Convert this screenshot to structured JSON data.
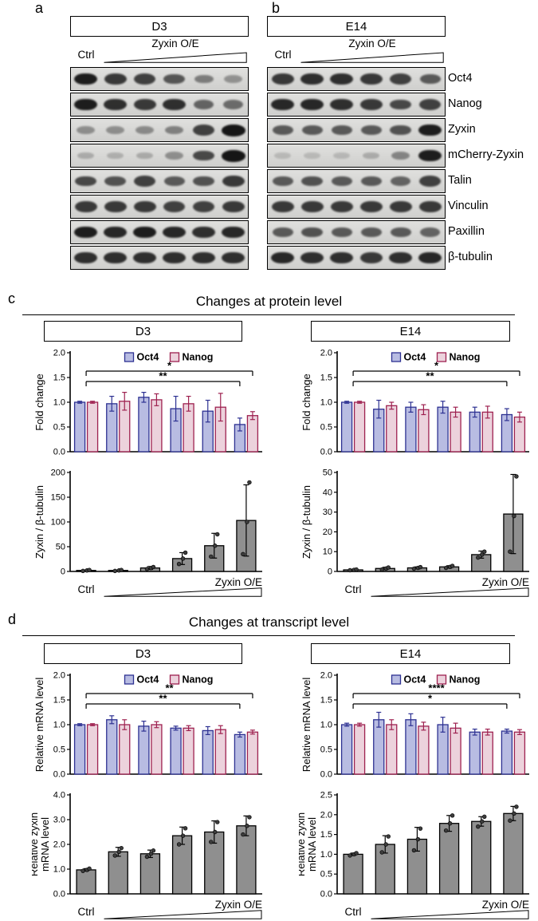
{
  "figure": {
    "panel_a_letter": "a",
    "panel_b_letter": "b",
    "panel_c_letter": "c",
    "panel_d_letter": "d"
  },
  "colors": {
    "oct4_fill": "#b8bce2",
    "oct4_stroke": "#2d3192",
    "oct4_text": "#1f25c8",
    "nanog_fill": "#ecd2dc",
    "nanog_stroke": "#9e2150",
    "nanog_text": "#b02456",
    "gray_fill": "#8f8f8f",
    "point_fill": "#3c3c3c",
    "axis": "#000000",
    "band": "#161616"
  },
  "legend": {
    "oct4": "Oct4",
    "nanog": "Nanog"
  },
  "blots": {
    "d3_title": "D3",
    "e14_title": "E14",
    "ctrl_label": "Ctrl",
    "oe_label": "Zyxin O/E",
    "rows": [
      {
        "name": "Oct4",
        "d3": [
          0.95,
          0.8,
          0.75,
          0.62,
          0.4,
          0.27
        ],
        "e14": [
          0.8,
          0.85,
          0.85,
          0.8,
          0.75,
          0.6
        ]
      },
      {
        "name": "Nanog",
        "d3": [
          0.95,
          0.85,
          0.8,
          0.85,
          0.55,
          0.5
        ],
        "e14": [
          0.9,
          0.9,
          0.85,
          0.8,
          0.7,
          0.75
        ]
      },
      {
        "name": "Zyxin",
        "d3": [
          0.3,
          0.3,
          0.32,
          0.38,
          0.75,
          1.0
        ],
        "e14": [
          0.6,
          0.6,
          0.6,
          0.6,
          0.65,
          0.95
        ]
      },
      {
        "name": "mCherry-Zyxin",
        "d3": [
          0.12,
          0.1,
          0.14,
          0.3,
          0.7,
          1.0
        ],
        "e14": [
          0.05,
          0.05,
          0.06,
          0.12,
          0.35,
          0.95
        ]
      },
      {
        "name": "Talin",
        "d3": [
          0.7,
          0.65,
          0.75,
          0.6,
          0.65,
          0.8
        ],
        "e14": [
          0.6,
          0.65,
          0.6,
          0.6,
          0.55,
          0.75
        ]
      },
      {
        "name": "Vinculin",
        "d3": [
          0.8,
          0.8,
          0.8,
          0.75,
          0.75,
          0.8
        ],
        "e14": [
          0.8,
          0.8,
          0.8,
          0.8,
          0.8,
          0.8
        ]
      },
      {
        "name": "Paxillin",
        "d3": [
          0.95,
          0.9,
          0.95,
          0.9,
          0.85,
          0.9
        ],
        "e14": [
          0.6,
          0.65,
          0.6,
          0.6,
          0.6,
          0.55
        ]
      },
      {
        "name": "β-tubulin",
        "d3": [
          0.85,
          0.85,
          0.85,
          0.85,
          0.85,
          0.85
        ],
        "e14": [
          0.9,
          0.85,
          0.85,
          0.8,
          0.85,
          0.9
        ]
      }
    ]
  },
  "protein": {
    "section_title": "Changes at protein level",
    "d3_title": "D3",
    "e14_title": "E14",
    "ctrl_label": "Ctrl",
    "oe_label": "Zyxin O/E"
  },
  "transcript": {
    "section_title": "Changes at transcript level",
    "d3_title": "D3",
    "e14_title": "E14",
    "ctrl_label": "Ctrl",
    "oe_label": "Zyxin O/E"
  },
  "chart_data": [
    {
      "id": "protein_d3_fold",
      "type": "grouped_bar",
      "panel": "c-D3",
      "ylabel": "Fold change",
      "ylim": [
        0,
        2.0
      ],
      "yticks": [
        "0.0",
        "0.5",
        "1.0",
        "1.5",
        "2.0"
      ],
      "x_axis": {
        "ctrl": "Ctrl",
        "oe": "Zyxin O/E"
      },
      "series": [
        {
          "name": "Oct4",
          "values": [
            1.0,
            0.97,
            1.1,
            0.87,
            0.82,
            0.55
          ],
          "errors": [
            0.02,
            0.15,
            0.1,
            0.25,
            0.22,
            0.13
          ]
        },
        {
          "name": "Nanog",
          "values": [
            1.0,
            1.02,
            1.05,
            0.97,
            0.9,
            0.73
          ],
          "errors": [
            0.02,
            0.18,
            0.12,
            0.15,
            0.28,
            0.08
          ]
        }
      ],
      "significance": [
        {
          "label": "*",
          "from": 0,
          "to": 5.2
        },
        {
          "label": "**",
          "from": 0,
          "to": 4.8
        }
      ]
    },
    {
      "id": "protein_e14_fold",
      "type": "grouped_bar",
      "panel": "c-E14",
      "ylabel": "Fold change",
      "ylim": [
        0,
        2.0
      ],
      "yticks": [
        "0.0",
        "0.5",
        "1.0",
        "1.5",
        "2.0"
      ],
      "x_axis": {
        "ctrl": "Ctrl",
        "oe": "Zyxin O/E"
      },
      "series": [
        {
          "name": "Oct4",
          "values": [
            1.0,
            0.86,
            0.9,
            0.9,
            0.8,
            0.75
          ],
          "errors": [
            0.02,
            0.18,
            0.1,
            0.12,
            0.1,
            0.12
          ]
        },
        {
          "name": "Nanog",
          "values": [
            1.0,
            0.93,
            0.85,
            0.8,
            0.8,
            0.7
          ],
          "errors": [
            0.02,
            0.07,
            0.1,
            0.1,
            0.12,
            0.1
          ]
        }
      ],
      "significance": [
        {
          "label": "*",
          "from": 0,
          "to": 5.2
        },
        {
          "label": "**",
          "from": 0,
          "to": 4.8
        }
      ]
    },
    {
      "id": "protein_d3_zyxin",
      "type": "bar",
      "panel": "c-D3",
      "ylabel": "Zyxin / β-tubulin",
      "ylim": [
        0,
        200
      ],
      "yticks": [
        "0",
        "50",
        "100",
        "150",
        "200"
      ],
      "x_axis": {
        "ctrl": "Ctrl",
        "oe": "Zyxin O/E"
      },
      "values": [
        2,
        2,
        7,
        26,
        52,
        103
      ],
      "errors": [
        1,
        1,
        3,
        12,
        25,
        72
      ],
      "points": [
        [
          1,
          2,
          3
        ],
        [
          1,
          2,
          3
        ],
        [
          5,
          7,
          9
        ],
        [
          15,
          26,
          38
        ],
        [
          30,
          52,
          75
        ],
        [
          35,
          100,
          180
        ]
      ]
    },
    {
      "id": "protein_e14_zyxin",
      "type": "bar",
      "panel": "c-E14",
      "ylabel": "Zyxin / β-tubulin",
      "ylim": [
        0,
        50
      ],
      "yticks": [
        "0",
        "10",
        "20",
        "30",
        "40",
        "50"
      ],
      "x_axis": {
        "ctrl": "Ctrl",
        "oe": "Zyxin O/E"
      },
      "values": [
        0.8,
        1.5,
        1.8,
        2.3,
        8.5,
        29
      ],
      "errors": [
        0.3,
        0.6,
        0.5,
        0.6,
        1.8,
        20
      ],
      "points": [
        [
          0.6,
          0.8,
          1.0
        ],
        [
          1.0,
          1.5,
          2.0
        ],
        [
          1.4,
          1.8,
          2.2
        ],
        [
          1.8,
          2.3,
          2.8
        ],
        [
          7,
          8.5,
          10
        ],
        [
          10,
          28,
          48
        ]
      ]
    },
    {
      "id": "transcript_d3_mrna",
      "type": "grouped_bar",
      "panel": "d-D3",
      "ylabel": "Relative mRNA level",
      "ylim": [
        0,
        2.0
      ],
      "yticks": [
        "0.0",
        "0.5",
        "1.0",
        "1.5",
        "2.0"
      ],
      "x_axis": {
        "ctrl": "Ctrl",
        "oe": "Zyxin O/E"
      },
      "series": [
        {
          "name": "Oct4",
          "values": [
            1.0,
            1.1,
            0.97,
            0.93,
            0.88,
            0.8
          ],
          "errors": [
            0.02,
            0.08,
            0.1,
            0.04,
            0.08,
            0.05
          ]
        },
        {
          "name": "Nanog",
          "values": [
            1.0,
            1.0,
            1.0,
            0.93,
            0.9,
            0.85
          ],
          "errors": [
            0.02,
            0.1,
            0.06,
            0.05,
            0.08,
            0.04
          ]
        }
      ],
      "significance": [
        {
          "label": "**",
          "from": 0,
          "to": 5.2
        },
        {
          "label": "**",
          "from": 0,
          "to": 4.8
        }
      ]
    },
    {
      "id": "transcript_e14_mrna",
      "type": "grouped_bar",
      "panel": "d-E14",
      "ylabel": "Relative mRNA level",
      "ylim": [
        0,
        2.0
      ],
      "yticks": [
        "0.0",
        "0.5",
        "1.0",
        "1.5",
        "2.0"
      ],
      "x_axis": {
        "ctrl": "Ctrl",
        "oe": "Zyxin O/E"
      },
      "series": [
        {
          "name": "Oct4",
          "values": [
            1.0,
            1.1,
            1.1,
            1.0,
            0.85,
            0.87
          ],
          "errors": [
            0.03,
            0.15,
            0.12,
            0.15,
            0.06,
            0.04
          ]
        },
        {
          "name": "Nanog",
          "values": [
            1.0,
            1.0,
            0.97,
            0.93,
            0.85,
            0.85
          ],
          "errors": [
            0.03,
            0.1,
            0.08,
            0.1,
            0.06,
            0.05
          ]
        }
      ],
      "significance": [
        {
          "label": "****",
          "from": 0,
          "to": 5.2
        },
        {
          "label": "*",
          "from": 0,
          "to": 4.8
        }
      ]
    },
    {
      "id": "transcript_d3_zyxin",
      "type": "bar",
      "panel": "d-D3",
      "ylabel": "Relative zyxin\nmRNA level",
      "ylim": [
        0,
        4.0
      ],
      "yticks": [
        "0.0",
        "1.0",
        "2.0",
        "3.0",
        "4.0"
      ],
      "x_axis": {
        "ctrl": "Ctrl",
        "oe": "Zyxin O/E"
      },
      "values": [
        0.97,
        1.7,
        1.62,
        2.35,
        2.5,
        2.75
      ],
      "errors": [
        0.05,
        0.18,
        0.15,
        0.35,
        0.45,
        0.4
      ],
      "points": [
        [
          0.93,
          0.97,
          1.02
        ],
        [
          1.55,
          1.7,
          1.85
        ],
        [
          1.5,
          1.62,
          1.75
        ],
        [
          2.0,
          2.35,
          2.65
        ],
        [
          2.1,
          2.5,
          2.9
        ],
        [
          2.4,
          2.75,
          3.1
        ]
      ]
    },
    {
      "id": "transcript_e14_zyxin",
      "type": "bar",
      "panel": "d-E14",
      "ylabel": "Relative zyxin\nmRNA level",
      "ylim": [
        0,
        2.5
      ],
      "yticks": [
        "0.0",
        "0.5",
        "1.0",
        "1.5",
        "2.0",
        "2.5"
      ],
      "x_axis": {
        "ctrl": "Ctrl",
        "oe": "Zyxin O/E"
      },
      "values": [
        1.0,
        1.25,
        1.38,
        1.78,
        1.83,
        2.03
      ],
      "errors": [
        0.03,
        0.22,
        0.3,
        0.2,
        0.12,
        0.18
      ],
      "points": [
        [
          0.97,
          1.0,
          1.03
        ],
        [
          1.05,
          1.25,
          1.45
        ],
        [
          1.1,
          1.38,
          1.65
        ],
        [
          1.6,
          1.78,
          1.98
        ],
        [
          1.7,
          1.83,
          1.95
        ],
        [
          1.85,
          2.03,
          2.2
        ]
      ]
    }
  ]
}
